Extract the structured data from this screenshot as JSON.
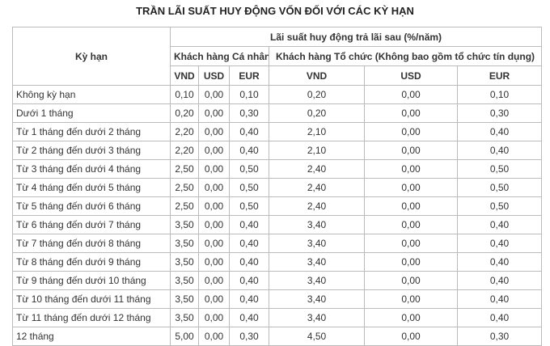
{
  "title": "TRẦN LÃI SUẤT HUY ĐỘNG VỐN ĐỐI VỚI CÁC KỲ HẠN",
  "header": {
    "term": "Kỳ hạn",
    "rate_group": "Lãi suất huy động trả lãi sau (%/năm)",
    "individual": "Khách hàng Cá nhân",
    "organization": "Khách hàng Tổ chức (Không bao gồm tổ chức tín dụng)",
    "currencies": [
      "VND",
      "USD",
      "EUR",
      "VND",
      "USD",
      "EUR"
    ]
  },
  "rows": [
    [
      "Không kỳ hạn",
      "0,10",
      "0,00",
      "0,10",
      "0,20",
      "0,00",
      "0,10"
    ],
    [
      "Dưới 1 tháng",
      "0,20",
      "0,00",
      "0,30",
      "0,20",
      "0,00",
      "0,30"
    ],
    [
      "Từ 1 tháng đến dưới 2 tháng",
      "2,20",
      "0,00",
      "0,40",
      "2,10",
      "0,00",
      "0,40"
    ],
    [
      "Từ 2 tháng đến dưới 3 tháng",
      "2,20",
      "0,00",
      "0,40",
      "2,10",
      "0,00",
      "0,40"
    ],
    [
      "Từ 3 tháng đến dưới 4 tháng",
      "2,50",
      "0,00",
      "0,50",
      "2,40",
      "0,00",
      "0,50"
    ],
    [
      "Từ 4 tháng đến dưới 5 tháng",
      "2,50",
      "0,00",
      "0,50",
      "2,40",
      "0,00",
      "0,50"
    ],
    [
      "Từ 5 tháng đến dưới 6 tháng",
      "2,50",
      "0,00",
      "0,50",
      "2,40",
      "0,00",
      "0,50"
    ],
    [
      "Từ 6 tháng đến dưới 7 tháng",
      "3,50",
      "0,00",
      "0,40",
      "3,40",
      "0,00",
      "0,40"
    ],
    [
      "Từ 7 tháng đến dưới 8 tháng",
      "3,50",
      "0,00",
      "0,40",
      "3,40",
      "0,00",
      "0,40"
    ],
    [
      "Từ 8 tháng đến dưới 9 tháng",
      "3,50",
      "0,00",
      "0,40",
      "3,40",
      "0,00",
      "0,40"
    ],
    [
      "Từ 9 tháng đến dưới 10 tháng",
      "3,50",
      "0,00",
      "0,40",
      "3,40",
      "0,00",
      "0,40"
    ],
    [
      "Từ 10 tháng đến dưới 11 tháng",
      "3,50",
      "0,00",
      "0,40",
      "3,40",
      "0,00",
      "0,40"
    ],
    [
      "Từ 11 tháng đến dưới 12 tháng",
      "3,50",
      "0,00",
      "0,40",
      "3,40",
      "0,00",
      "0,40"
    ],
    [
      "12 tháng",
      "5,00",
      "0,00",
      "0,30",
      "4,50",
      "0,00",
      "0,30"
    ]
  ]
}
